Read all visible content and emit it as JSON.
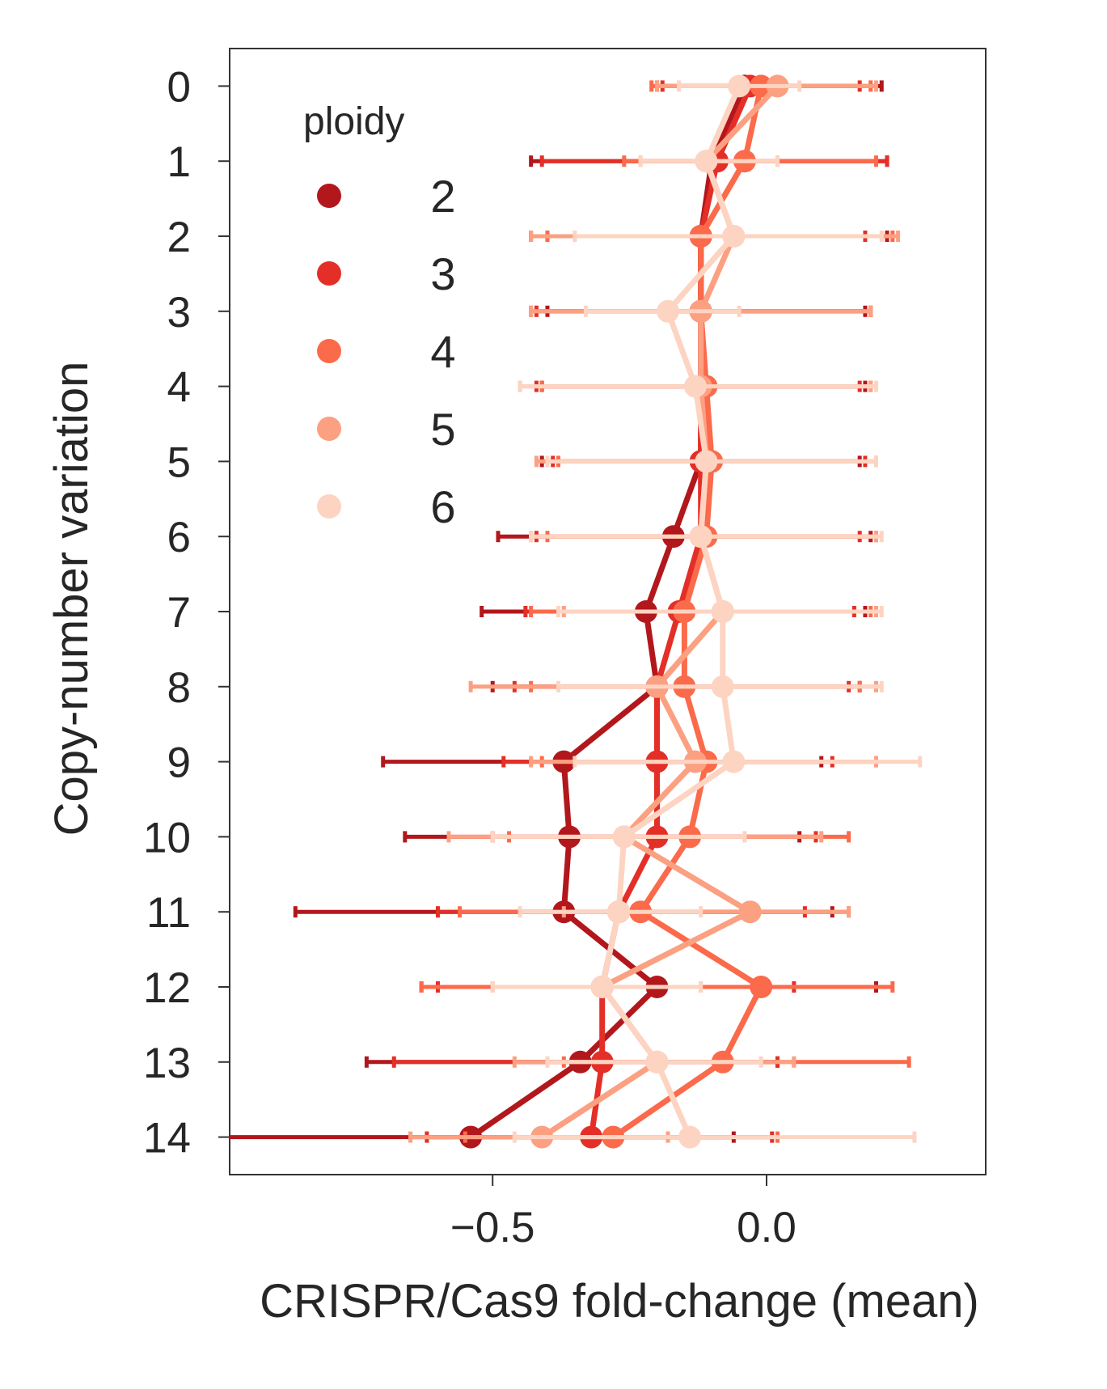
{
  "chart_data": {
    "type": "line",
    "orientation": "horizontal",
    "xlabel": "CRISPR/Cas9 fold-change (mean)",
    "ylabel": "Copy-number variation",
    "xlim": [
      -0.98,
      0.4
    ],
    "ylim": [
      -0.5,
      14.5
    ],
    "y_inverted": true,
    "x_ticks": [
      -0.5,
      0.0
    ],
    "x_tick_labels": [
      "−0.5",
      "0.0"
    ],
    "y_ticks": [
      0,
      1,
      2,
      3,
      4,
      5,
      6,
      7,
      8,
      9,
      10,
      11,
      12,
      13,
      14
    ],
    "y_tick_labels": [
      "0",
      "1",
      "2",
      "3",
      "4",
      "5",
      "6",
      "7",
      "8",
      "9",
      "10",
      "11",
      "12",
      "13",
      "14"
    ],
    "grid": false,
    "legend": {
      "title": "ploidy",
      "position": "top-left"
    },
    "series": [
      {
        "name": "2",
        "color": "#b2171c",
        "points": [
          {
            "y": 0,
            "x": -0.04,
            "lo": -0.2,
            "hi": 0.21
          },
          {
            "y": 1,
            "x": -0.1,
            "lo": -0.43,
            "hi": 0.22
          },
          {
            "y": 2,
            "x": -0.12,
            "lo": -0.4,
            "hi": 0.22
          },
          {
            "y": 3,
            "x": -0.12,
            "lo": -0.4,
            "hi": 0.18
          },
          {
            "y": 4,
            "x": -0.12,
            "lo": -0.41,
            "hi": 0.18
          },
          {
            "y": 5,
            "x": -0.12,
            "lo": -0.41,
            "hi": 0.17
          },
          {
            "y": 6,
            "x": -0.17,
            "lo": -0.49,
            "hi": 0.19
          },
          {
            "y": 7,
            "x": -0.22,
            "lo": -0.52,
            "hi": 0.18
          },
          {
            "y": 8,
            "x": -0.2,
            "lo": -0.5,
            "hi": 0.17
          },
          {
            "y": 9,
            "x": -0.37,
            "lo": -0.7,
            "hi": 0.1
          },
          {
            "y": 10,
            "x": -0.36,
            "lo": -0.66,
            "hi": 0.06
          },
          {
            "y": 11,
            "x": -0.37,
            "lo": -0.86,
            "hi": 0.12
          },
          {
            "y": 12,
            "x": -0.2,
            "lo": -0.63,
            "hi": 0.2
          },
          {
            "y": 13,
            "x": -0.34,
            "lo": -0.73,
            "hi": 0.02
          },
          {
            "y": 14,
            "x": -0.54,
            "lo": -1.0,
            "hi": -0.06
          }
        ]
      },
      {
        "name": "3",
        "color": "#e32f27",
        "points": [
          {
            "y": 0,
            "x": -0.03,
            "lo": -0.19,
            "hi": 0.17
          },
          {
            "y": 1,
            "x": -0.09,
            "lo": -0.41,
            "hi": 0.22
          },
          {
            "y": 2,
            "x": -0.12,
            "lo": -0.43,
            "hi": 0.18
          },
          {
            "y": 3,
            "x": -0.12,
            "lo": -0.42,
            "hi": 0.19
          },
          {
            "y": 4,
            "x": -0.12,
            "lo": -0.42,
            "hi": 0.17
          },
          {
            "y": 5,
            "x": -0.12,
            "lo": -0.39,
            "hi": 0.18
          },
          {
            "y": 6,
            "x": -0.12,
            "lo": -0.42,
            "hi": 0.17
          },
          {
            "y": 7,
            "x": -0.16,
            "lo": -0.44,
            "hi": 0.16
          },
          {
            "y": 8,
            "x": -0.2,
            "lo": -0.46,
            "hi": 0.15
          },
          {
            "y": 9,
            "x": -0.2,
            "lo": -0.48,
            "hi": 0.12
          },
          {
            "y": 10,
            "x": -0.2,
            "lo": -0.5,
            "hi": 0.09
          },
          {
            "y": 11,
            "x": -0.27,
            "lo": -0.6,
            "hi": 0.07
          },
          {
            "y": 12,
            "x": -0.3,
            "lo": -0.6,
            "hi": 0.05
          },
          {
            "y": 13,
            "x": -0.3,
            "lo": -0.68,
            "hi": 0.02
          },
          {
            "y": 14,
            "x": -0.32,
            "lo": -0.62,
            "hi": 0.01
          }
        ]
      },
      {
        "name": "4",
        "color": "#fb6a4a",
        "points": [
          {
            "y": 0,
            "x": -0.01,
            "lo": -0.21,
            "hi": 0.19
          },
          {
            "y": 1,
            "x": -0.04,
            "lo": -0.26,
            "hi": 0.2
          },
          {
            "y": 2,
            "x": -0.12,
            "lo": -0.4,
            "hi": 0.23
          },
          {
            "y": 3,
            "x": -0.12,
            "lo": -0.43,
            "hi": 0.19
          },
          {
            "y": 4,
            "x": -0.11,
            "lo": -0.41,
            "hi": 0.19
          },
          {
            "y": 5,
            "x": -0.1,
            "lo": -0.38,
            "hi": 0.2
          },
          {
            "y": 6,
            "x": -0.11,
            "lo": -0.4,
            "hi": 0.2
          },
          {
            "y": 7,
            "x": -0.15,
            "lo": -0.43,
            "hi": 0.19
          },
          {
            "y": 8,
            "x": -0.15,
            "lo": -0.43,
            "hi": 0.17
          },
          {
            "y": 9,
            "x": -0.11,
            "lo": -0.41,
            "hi": 0.2
          },
          {
            "y": 10,
            "x": -0.14,
            "lo": -0.47,
            "hi": 0.15
          },
          {
            "y": 11,
            "x": -0.23,
            "lo": -0.56,
            "hi": 0.15
          },
          {
            "y": 12,
            "x": -0.01,
            "lo": -0.63,
            "hi": 0.23
          },
          {
            "y": 13,
            "x": -0.08,
            "lo": -0.37,
            "hi": 0.26
          },
          {
            "y": 14,
            "x": -0.28,
            "lo": -0.55,
            "hi": 0.02
          }
        ]
      },
      {
        "name": "5",
        "color": "#fca082",
        "points": [
          {
            "y": 0,
            "x": 0.02,
            "lo": -0.2,
            "hi": 0.2
          },
          {
            "y": 1,
            "x": -0.11,
            "lo": -0.23,
            "hi": 0.02
          },
          {
            "y": 2,
            "x": -0.06,
            "lo": -0.43,
            "hi": 0.24
          },
          {
            "y": 3,
            "x": -0.12,
            "lo": -0.43,
            "hi": 0.19
          },
          {
            "y": 4,
            "x": -0.12,
            "lo": -0.45,
            "hi": 0.19
          },
          {
            "y": 5,
            "x": -0.11,
            "lo": -0.42,
            "hi": 0.2
          },
          {
            "y": 6,
            "x": -0.12,
            "lo": -0.43,
            "hi": 0.2
          },
          {
            "y": 7,
            "x": -0.08,
            "lo": -0.37,
            "hi": 0.2
          },
          {
            "y": 8,
            "x": -0.2,
            "lo": -0.54,
            "hi": 0.2
          },
          {
            "y": 9,
            "x": -0.13,
            "lo": -0.43,
            "hi": 0.2
          },
          {
            "y": 10,
            "x": -0.26,
            "lo": -0.58,
            "hi": 0.1
          },
          {
            "y": 11,
            "x": -0.03,
            "lo": -0.37,
            "hi": 0.15
          },
          {
            "y": 12,
            "x": -0.3,
            "lo": -0.5,
            "hi": -0.12
          },
          {
            "y": 13,
            "x": -0.2,
            "lo": -0.46,
            "hi": 0.05
          },
          {
            "y": 14,
            "x": -0.41,
            "lo": -0.65,
            "hi": -0.18
          }
        ]
      },
      {
        "name": "6",
        "color": "#fdd4c2",
        "points": [
          {
            "y": 0,
            "x": -0.05,
            "lo": -0.16,
            "hi": 0.06
          },
          {
            "y": 1,
            "x": -0.11,
            "lo": -0.23,
            "hi": 0.02
          },
          {
            "y": 2,
            "x": -0.06,
            "lo": -0.35,
            "hi": 0.21
          },
          {
            "y": 3,
            "x": -0.18,
            "lo": -0.33,
            "hi": -0.05
          },
          {
            "y": 4,
            "x": -0.13,
            "lo": -0.45,
            "hi": 0.2
          },
          {
            "y": 5,
            "x": -0.11,
            "lo": -0.4,
            "hi": 0.2
          },
          {
            "y": 6,
            "x": -0.12,
            "lo": -0.43,
            "hi": 0.21
          },
          {
            "y": 7,
            "x": -0.08,
            "lo": -0.38,
            "hi": 0.21
          },
          {
            "y": 8,
            "x": -0.08,
            "lo": -0.38,
            "hi": 0.21
          },
          {
            "y": 9,
            "x": -0.06,
            "lo": -0.35,
            "hi": 0.28
          },
          {
            "y": 10,
            "x": -0.26,
            "lo": -0.5,
            "hi": -0.04
          },
          {
            "y": 11,
            "x": -0.27,
            "lo": -0.45,
            "hi": -0.12
          },
          {
            "y": 12,
            "x": -0.3,
            "lo": -0.5,
            "hi": -0.12
          },
          {
            "y": 13,
            "x": -0.2,
            "lo": -0.4,
            "hi": -0.01
          },
          {
            "y": 14,
            "x": -0.14,
            "lo": -0.46,
            "hi": 0.27
          }
        ]
      }
    ]
  }
}
